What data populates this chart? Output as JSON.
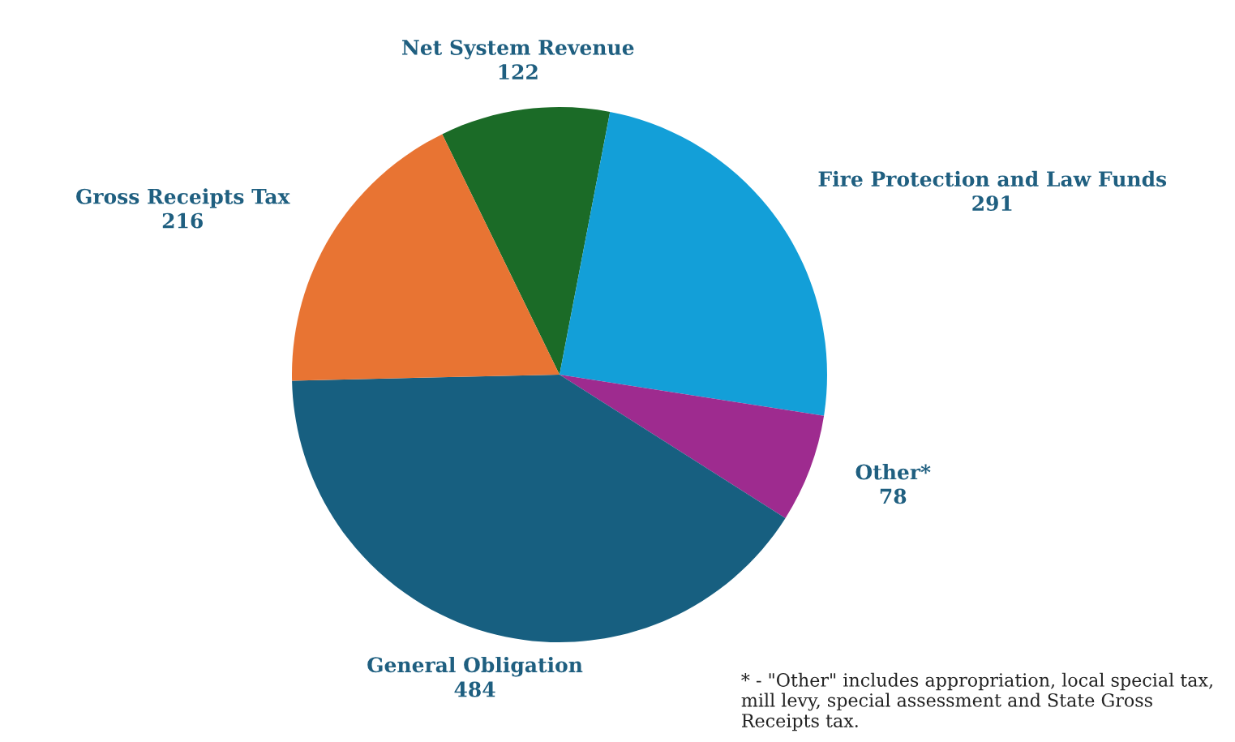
{
  "chart_data": {
    "type": "pie",
    "categories": [
      "Net System Revenue",
      "Fire Protection and Law Funds",
      "Other*",
      "General Obligation",
      "Gross Receipts Tax"
    ],
    "values": [
      122,
      291,
      78,
      484,
      216
    ],
    "colors": [
      "#1b6b27",
      "#139fd8",
      "#9e2b8f",
      "#175f80",
      "#e87433"
    ],
    "data_labels": true,
    "annotations": [
      "* - \"Other\" includes appropriation, local special tax, mill levy, special assessment and State Gross Receipts tax."
    ]
  }
}
